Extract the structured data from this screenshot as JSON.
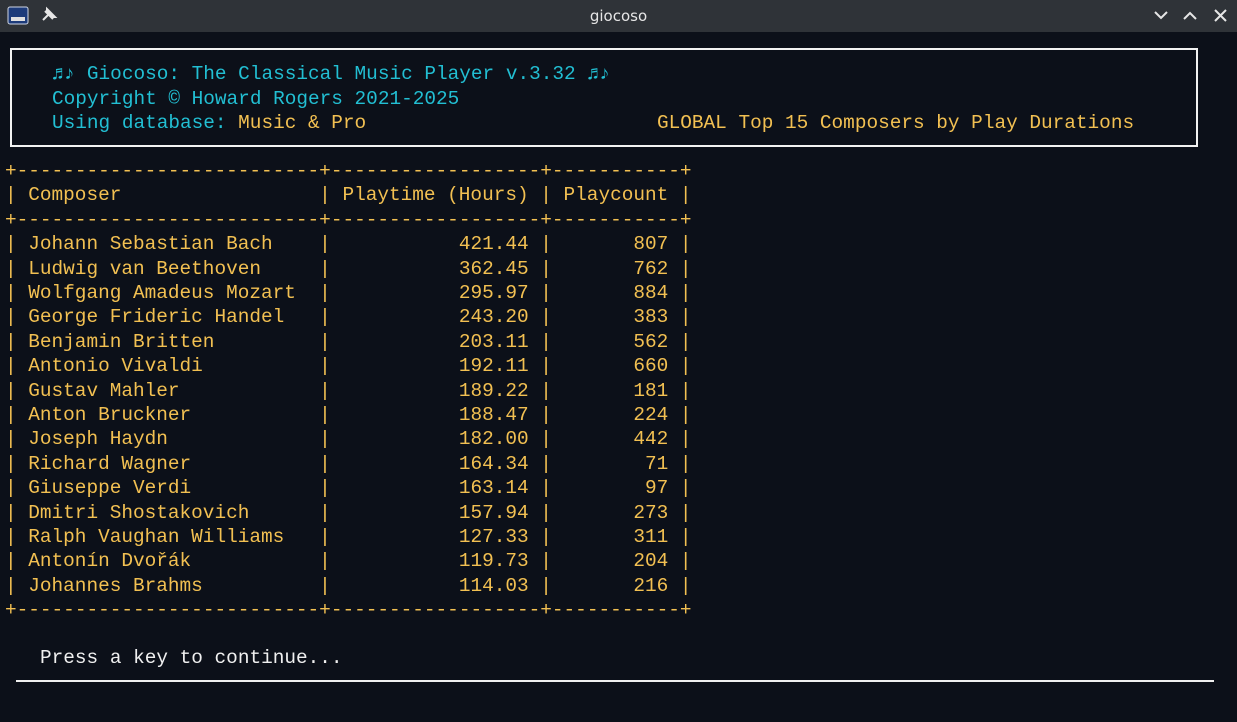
{
  "window": {
    "title": "giocoso"
  },
  "header": {
    "title": "♬♪ Giocoso: The Classical Music Player v.3.32 ♬♪",
    "copyright": "Copyright © Howard Rogers 2021-2025",
    "database_label": "Using database:",
    "database": "Music & Pro",
    "report_title": "GLOBAL Top 15 Composers by Play Durations"
  },
  "table": {
    "columns": [
      "Composer",
      "Playtime (Hours)",
      "Playcount"
    ],
    "rows": [
      [
        "Johann Sebastian Bach",
        "421.44",
        "807"
      ],
      [
        "Ludwig van Beethoven",
        "362.45",
        "762"
      ],
      [
        "Wolfgang Amadeus Mozart",
        "295.97",
        "884"
      ],
      [
        "George Frideric Handel",
        "243.20",
        "383"
      ],
      [
        "Benjamin Britten",
        "203.11",
        "562"
      ],
      [
        "Antonio Vivaldi",
        "192.11",
        "660"
      ],
      [
        "Gustav Mahler",
        "189.22",
        "181"
      ],
      [
        "Anton Bruckner",
        "188.47",
        "224"
      ],
      [
        "Joseph Haydn",
        "182.00",
        "442"
      ],
      [
        "Richard Wagner",
        "164.34",
        "71"
      ],
      [
        "Giuseppe Verdi",
        "163.14",
        "97"
      ],
      [
        "Dmitri Shostakovich",
        "157.94",
        "273"
      ],
      [
        "Ralph Vaughan Williams",
        "127.33",
        "311"
      ],
      [
        "Antonín Dvořák",
        "119.73",
        "204"
      ],
      [
        "Johannes Brahms",
        "114.03",
        "216"
      ]
    ]
  },
  "prompt": "Press a key to continue..."
}
